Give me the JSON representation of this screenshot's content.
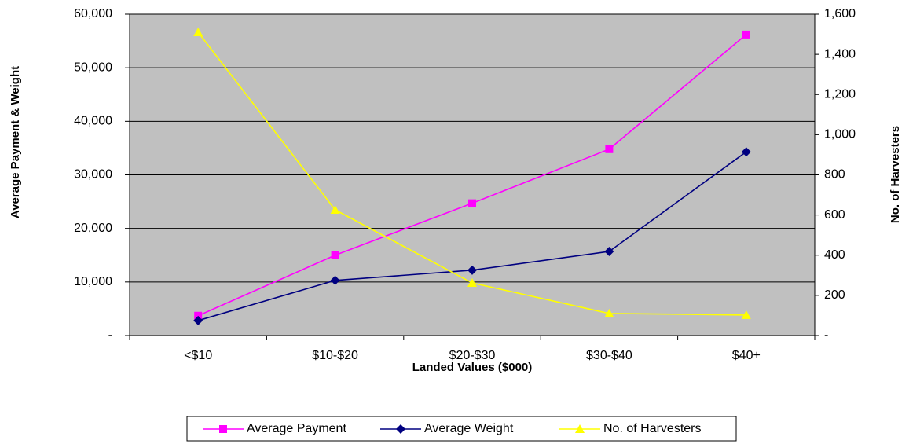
{
  "chart_data": {
    "type": "line",
    "categories": [
      "<$10",
      "$10-$20",
      "$20-$30",
      "$30-$40",
      "$40+"
    ],
    "series": [
      {
        "name": "Average Payment",
        "color": "#ff00ff",
        "marker": "square",
        "values": [
          3700,
          15000,
          24700,
          34800,
          56200
        ]
      },
      {
        "name": "Average Weight",
        "color": "#000080",
        "marker": "diamond",
        "values": [
          2800,
          10300,
          12200,
          15700,
          34300
        ]
      },
      {
        "name": "No. of Harvesters",
        "color": "#ffff00",
        "marker": "triangle",
        "axis": "y2",
        "values": [
          1510,
          626,
          262,
          110,
          102
        ]
      }
    ],
    "x_label": "Landed Values ($000)",
    "y_label": "Average Payment & Weight",
    "y2_label": "No. of Harvesters",
    "ylim": [
      0,
      60000
    ],
    "yticks": [
      {
        "value": 0,
        "label": "-"
      },
      {
        "value": 10000,
        "label": "10,000"
      },
      {
        "value": 20000,
        "label": "20,000"
      },
      {
        "value": 30000,
        "label": "30,000"
      },
      {
        "value": 40000,
        "label": "40,000"
      },
      {
        "value": 50000,
        "label": "50,000"
      },
      {
        "value": 60000,
        "label": "60,000"
      }
    ],
    "y2lim": [
      0,
      1600
    ],
    "y2ticks": [
      {
        "value": 0,
        "label": "-"
      },
      200,
      400,
      600,
      800,
      {
        "value": 1000,
        "label": "1,000"
      },
      {
        "value": 1200,
        "label": "1,200"
      },
      {
        "value": 1400,
        "label": "1,400"
      },
      {
        "value": 1600,
        "label": "1,600"
      }
    ],
    "grid": true,
    "plot_background": "#c0c0c0",
    "legend": "bottom"
  }
}
